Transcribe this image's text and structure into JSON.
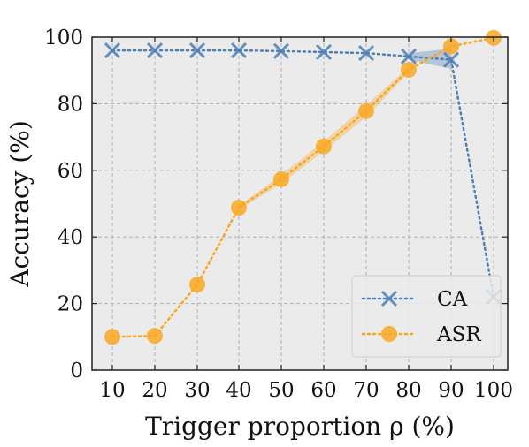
{
  "chart_data": {
    "type": "line",
    "x": [
      10,
      20,
      30,
      40,
      50,
      60,
      70,
      80,
      90,
      100
    ],
    "x_tick_labels": [
      "10",
      "20",
      "30",
      "40",
      "50",
      "60",
      "70",
      "80",
      "90",
      "100"
    ],
    "y_tick_labels": [
      "0",
      "20",
      "40",
      "60",
      "80",
      "100"
    ],
    "xlabel": "Trigger proportion ρ (%)",
    "ylabel": "Accuracy (%)",
    "ylim": [
      0,
      100
    ],
    "grid": true,
    "legend_position": "lower-right",
    "series": [
      {
        "name": "CA",
        "marker": "x",
        "color": "#4e7fb5",
        "line_style": "dotted",
        "values": [
          96,
          96,
          96,
          96,
          95.8,
          95.5,
          95.2,
          94.2,
          93.2,
          22
        ]
      },
      {
        "name": "ASR",
        "marker": "circle",
        "color": "#f9a825",
        "line_style": "dotted",
        "values": [
          10,
          10.3,
          25.7,
          48.8,
          57.3,
          67.2,
          77.8,
          90.2,
          97.2,
          99.8
        ]
      }
    ],
    "bands": [
      {
        "series": "ASR",
        "x": [
          40,
          50,
          60,
          70,
          80
        ],
        "lower": [
          48.2,
          56.0,
          65.7,
          76.0,
          89.4
        ],
        "upper": [
          49.4,
          58.6,
          68.7,
          79.6,
          91.0
        ]
      },
      {
        "series": "CA",
        "x": [
          80,
          90
        ],
        "lower": [
          93.2,
          90.5
        ],
        "upper": [
          95.2,
          96.5
        ]
      }
    ]
  },
  "colors": {
    "plot_background": "#ebebeb",
    "grid": "#b0b0b0",
    "ca": "#4e7fb5",
    "asr": "#f9a825"
  }
}
